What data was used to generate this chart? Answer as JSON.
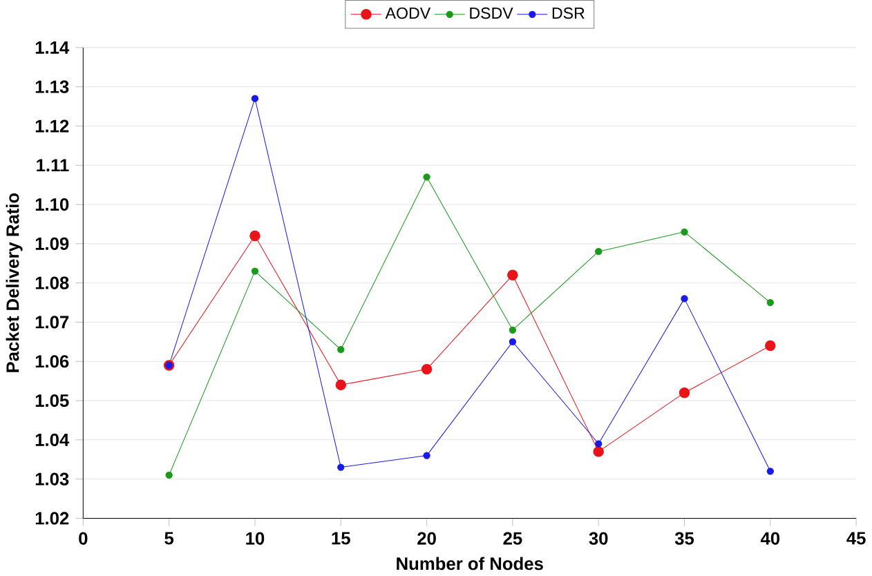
{
  "chart_data": {
    "type": "line",
    "xlabel": "Number of Nodes",
    "ylabel": "Packet Delivery Ratio",
    "x": [
      5,
      10,
      15,
      20,
      25,
      30,
      35,
      40
    ],
    "series": [
      {
        "name": "AODV",
        "color": "#e8141a",
        "values": [
          1.059,
          1.092,
          1.054,
          1.058,
          1.082,
          1.037,
          1.052,
          1.064
        ]
      },
      {
        "name": "DSDV",
        "color": "#1a9a1a",
        "values": [
          1.031,
          1.083,
          1.063,
          1.107,
          1.068,
          1.088,
          1.093,
          1.075
        ]
      },
      {
        "name": "DSR",
        "color": "#1a1ae8",
        "values": [
          1.059,
          1.127,
          1.033,
          1.036,
          1.065,
          1.039,
          1.076,
          1.032
        ]
      }
    ],
    "xlim": [
      0,
      45
    ],
    "xticks": [
      0,
      5,
      10,
      15,
      20,
      25,
      30,
      35,
      40,
      45
    ],
    "ylim": [
      1.02,
      1.14
    ],
    "yticks": [
      1.02,
      1.03,
      1.04,
      1.05,
      1.06,
      1.07,
      1.08,
      1.09,
      {
        "value": 1.1,
        "label": "1.10"
      },
      1.11,
      1.12,
      1.13,
      1.14
    ],
    "grid": "y",
    "legend": "top",
    "marker": "circle",
    "line_style": "solid"
  }
}
